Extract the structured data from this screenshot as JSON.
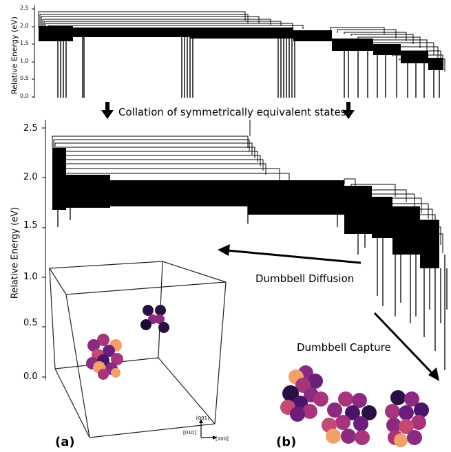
{
  "top_chart": {
    "ylabel": "Relative Energy (eV)",
    "ticks": [
      "0.0",
      "0.5",
      "1.0",
      "1.5",
      "2.0",
      "2.5"
    ]
  },
  "collation_text": "Collation of symmetrically equivalent states",
  "main_chart": {
    "ylabel": "Relative Energy (eV)",
    "ticks": [
      "0.0",
      "0.5",
      "1.0",
      "1.5",
      "2.0",
      "2.5"
    ]
  },
  "annotations": {
    "diffusion": "Dumbbell Diffusion",
    "capture": "Dumbbell Capture"
  },
  "axes_triad": {
    "z": "[001]",
    "y": "[010]",
    "x": "[100]"
  },
  "panels": {
    "a": "(a)",
    "b": "(b)"
  },
  "colors": {
    "line": "#000000",
    "sphere_palette": [
      "#2a0f45",
      "#4a1469",
      "#6b1e7c",
      "#8b2a80",
      "#a8357b",
      "#c44a73",
      "#f2a06a"
    ]
  }
}
